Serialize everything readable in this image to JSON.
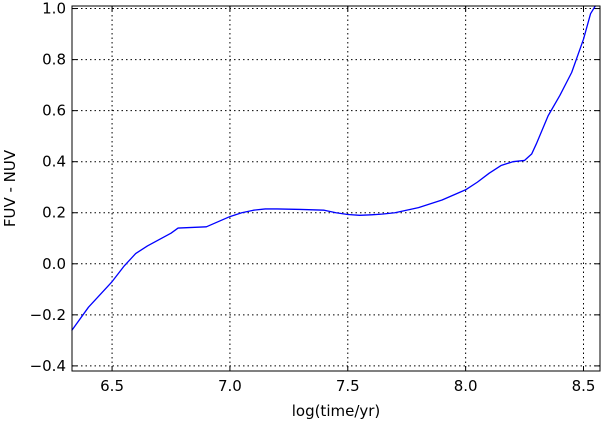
{
  "chart_data": {
    "type": "line",
    "title": "",
    "xlabel": "log(time/yr)",
    "ylabel": "FUV - NUV",
    "xlim": [
      6.33,
      8.57
    ],
    "ylim": [
      -0.42,
      1.01
    ],
    "grid": true,
    "legend": "none",
    "x_ticks": [
      6.5,
      7.0,
      7.5,
      8.0,
      8.5
    ],
    "x_tick_labels": [
      "6.5",
      "7.0",
      "7.5",
      "8.0",
      "8.5"
    ],
    "y_ticks": [
      -0.4,
      -0.2,
      0.0,
      0.2,
      0.4,
      0.6,
      0.8,
      1.0
    ],
    "y_tick_labels": [
      "−0.4",
      "−0.2",
      "0.0",
      "0.2",
      "0.4",
      "0.6",
      "0.8",
      "1.0"
    ],
    "colors": {
      "line": "#0000ff",
      "grid": "#000000",
      "frame": "#000000"
    },
    "series": [
      {
        "x": [
          6.33,
          6.4,
          6.5,
          6.55,
          6.6,
          6.65,
          6.7,
          6.75,
          6.78,
          6.9,
          6.95,
          7.0,
          7.05,
          7.1,
          7.15,
          7.2,
          7.3,
          7.4,
          7.45,
          7.5,
          7.55,
          7.6,
          7.65,
          7.7,
          7.8,
          7.9,
          8.0,
          8.05,
          8.1,
          8.15,
          8.2,
          8.25,
          8.28,
          8.3,
          8.35,
          8.4,
          8.45,
          8.5,
          8.53,
          8.55
        ],
        "y": [
          -0.26,
          -0.17,
          -0.07,
          -0.01,
          0.04,
          0.07,
          0.095,
          0.12,
          0.14,
          0.145,
          0.165,
          0.185,
          0.2,
          0.21,
          0.215,
          0.215,
          0.213,
          0.21,
          0.2,
          0.193,
          0.19,
          0.192,
          0.195,
          0.2,
          0.22,
          0.25,
          0.29,
          0.32,
          0.355,
          0.385,
          0.4,
          0.405,
          0.43,
          0.47,
          0.58,
          0.66,
          0.75,
          0.88,
          0.98,
          1.01
        ]
      }
    ]
  }
}
